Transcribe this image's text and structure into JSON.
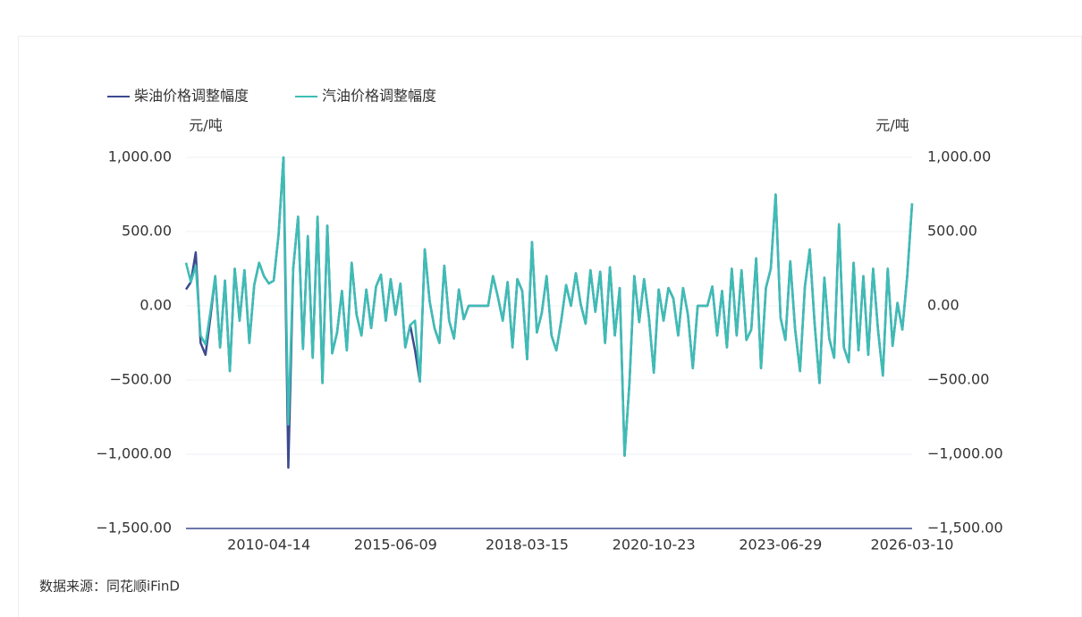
{
  "chart_data": {
    "type": "line",
    "y_unit": "元/吨",
    "y2_unit": "元/吨",
    "source": "数据来源：同花顺iFinD",
    "categories": [
      null,
      null,
      null,
      null,
      null,
      null,
      null,
      null,
      null,
      null,
      null,
      null,
      null,
      null,
      null,
      null,
      null,
      "2010-04-14",
      null,
      null,
      null,
      null,
      null,
      null,
      null,
      null,
      null,
      null,
      null,
      null,
      null,
      null,
      null,
      null,
      null,
      null,
      null,
      null,
      null,
      null,
      null,
      null,
      null,
      "2015-06-09",
      null,
      null,
      null,
      null,
      null,
      null,
      null,
      null,
      null,
      null,
      null,
      null,
      null,
      null,
      null,
      null,
      null,
      null,
      null,
      null,
      null,
      null,
      null,
      null,
      null,
      null,
      "2018-03-15",
      null,
      null,
      null,
      null,
      null,
      null,
      null,
      null,
      null,
      null,
      null,
      null,
      null,
      null,
      null,
      null,
      null,
      null,
      null,
      null,
      null,
      null,
      null,
      null,
      null,
      "2020-10-23",
      null,
      null,
      null,
      null,
      null,
      null,
      null,
      null,
      null,
      null,
      null,
      null,
      null,
      null,
      null,
      null,
      null,
      null,
      null,
      null,
      null,
      null,
      null,
      null,
      null,
      "2023-06-29",
      null,
      null,
      null,
      null,
      null,
      null,
      null,
      null,
      null,
      null,
      null,
      null,
      null,
      null,
      null,
      null,
      null,
      null,
      null,
      null,
      null,
      null,
      null,
      null,
      null,
      null,
      "2026-03-10"
    ],
    "series": [
      {
        "name": "柴油价格调整幅度",
        "color": "#3c4a8e",
        "axis": "y",
        "values": [
          110,
          160,
          360,
          -250,
          -330,
          -80,
          200,
          -280,
          170,
          -440,
          250,
          -100,
          240,
          -250,
          140,
          290,
          200,
          150,
          170,
          480,
          1000,
          -1090,
          250,
          600,
          -290,
          470,
          -350,
          600,
          -520,
          540,
          -320,
          -180,
          100,
          -300,
          290,
          -60,
          -200,
          110,
          -150,
          130,
          210,
          -100,
          180,
          -60,
          150,
          -280,
          -130,
          -300,
          -510,
          380,
          30,
          -150,
          -250,
          270,
          -100,
          -220,
          110,
          -90,
          0,
          0,
          0,
          0,
          0,
          200,
          60,
          -100,
          160,
          -280,
          180,
          100,
          -360,
          430,
          -180,
          -50,
          200,
          -200,
          -300,
          -100,
          140,
          0,
          220,
          10,
          -120,
          240,
          -40,
          230,
          -250,
          260,
          -200,
          120,
          -1010,
          -520,
          200,
          -110,
          180,
          -80,
          -450,
          110,
          -100,
          120,
          50,
          -200,
          120,
          -60,
          -420,
          0,
          0,
          0,
          130,
          -200,
          100,
          -280,
          250,
          -200,
          240,
          -230,
          -160,
          320,
          -420,
          120,
          250,
          750,
          -80,
          -230,
          300,
          -160,
          -440,
          130,
          380,
          -120,
          -520,
          190,
          -220,
          -350,
          550,
          -280,
          -380,
          290,
          -300,
          200,
          -330,
          250,
          -160,
          -470,
          250,
          -270,
          20,
          -160,
          200,
          690
        ]
      },
      {
        "name": "汽油价格调整幅度",
        "color": "#3dbdb5",
        "axis": "y2",
        "values": [
          290,
          160,
          270,
          -200,
          -260,
          -40,
          200,
          -280,
          170,
          -440,
          250,
          -100,
          240,
          -250,
          140,
          290,
          200,
          150,
          170,
          480,
          1000,
          -800,
          250,
          600,
          -290,
          470,
          -350,
          600,
          -520,
          540,
          -320,
          -180,
          100,
          -300,
          290,
          -60,
          -200,
          110,
          -150,
          130,
          210,
          -100,
          180,
          -60,
          150,
          -280,
          -130,
          -100,
          -510,
          380,
          30,
          -150,
          -250,
          270,
          -100,
          -220,
          110,
          -90,
          0,
          0,
          0,
          0,
          0,
          200,
          60,
          -100,
          160,
          -280,
          180,
          100,
          -360,
          430,
          -180,
          -50,
          200,
          -200,
          -300,
          -100,
          140,
          0,
          220,
          10,
          -120,
          240,
          -40,
          230,
          -250,
          260,
          -200,
          120,
          -1010,
          -520,
          200,
          -110,
          180,
          -80,
          -450,
          110,
          -100,
          120,
          50,
          -200,
          120,
          -60,
          -420,
          0,
          0,
          0,
          130,
          -200,
          100,
          -280,
          250,
          -200,
          240,
          -230,
          -160,
          320,
          -420,
          120,
          250,
          750,
          -80,
          -230,
          300,
          -160,
          -440,
          130,
          380,
          -120,
          -520,
          190,
          -220,
          -350,
          550,
          -280,
          -380,
          290,
          -300,
          200,
          -330,
          250,
          -160,
          -470,
          250,
          -270,
          20,
          -160,
          200,
          690
        ]
      }
    ],
    "ylim": [
      -1500,
      1000
    ],
    "yticks": [
      {
        "value": -1500,
        "label": "−1,500.00"
      },
      {
        "value": -1000,
        "label": "−1,000.00"
      },
      {
        "value": -500,
        "label": "−500.00"
      },
      {
        "value": 0,
        "label": "0.00"
      },
      {
        "value": 500,
        "label": "500.00"
      },
      {
        "value": 1000,
        "label": "1,000.00"
      }
    ],
    "y2lim": [
      -1500,
      1000
    ],
    "y2ticks": [
      {
        "value": -1500,
        "label": "−1,500.00"
      },
      {
        "value": -1000,
        "label": "−1,000.00"
      },
      {
        "value": -500,
        "label": "−500.00"
      },
      {
        "value": 0,
        "label": "0.00"
      },
      {
        "value": 500,
        "label": "500.00"
      },
      {
        "value": 1000,
        "label": "1,000.00"
      }
    ],
    "grid": true
  }
}
